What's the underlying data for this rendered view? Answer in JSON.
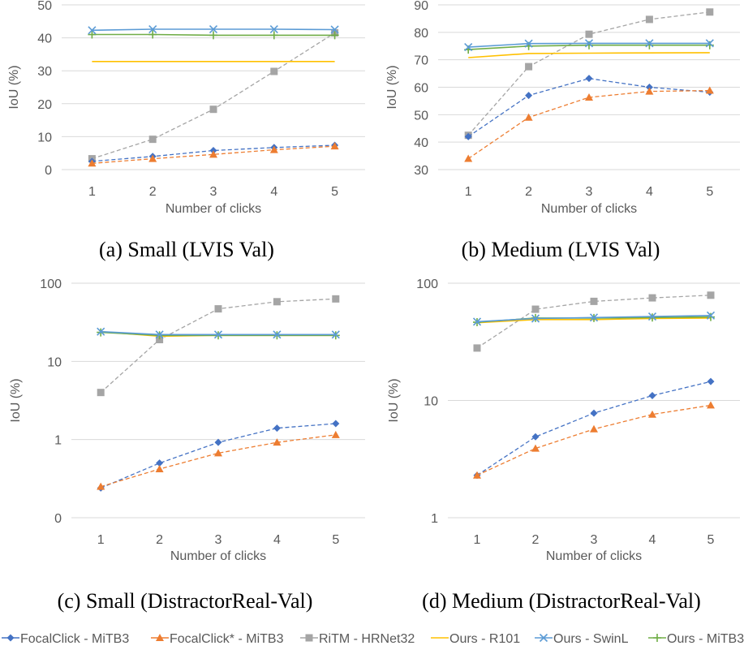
{
  "colors": {
    "focalclick": "#4472c4",
    "focalclick_star": "#ed7d31",
    "ritm": "#a5a5a5",
    "ours_r101": "#ffc000",
    "ours_swinl": "#5b9bd5",
    "ours_mitb3": "#70ad47",
    "gridline": "#d9d9d9",
    "axis_text": "#595959"
  },
  "legend": [
    {
      "key": "focalclick",
      "label": "FocalClick - MiTB3",
      "marker": "diamond",
      "dashed": true
    },
    {
      "key": "focalclick_star",
      "label": "FocalClick* - MiTB3",
      "marker": "triangle",
      "dashed": true
    },
    {
      "key": "ritm",
      "label": "RiTM - HRNet32",
      "marker": "square",
      "dashed": true
    },
    {
      "key": "ours_r101",
      "label": "Ours - R101",
      "marker": "none",
      "dashed": false
    },
    {
      "key": "ours_swinl",
      "label": "Ours - SwinL",
      "marker": "x",
      "dashed": false
    },
    {
      "key": "ours_mitb3",
      "label": "Ours - MiTB3",
      "marker": "plus",
      "dashed": false
    }
  ],
  "chart_data": [
    {
      "type": "line",
      "caption": "(a) Small (LVIS Val)",
      "xlabel": "Number of clicks",
      "ylabel": "IoU (%)",
      "categories": [
        "1",
        "2",
        "3",
        "4",
        "5"
      ],
      "yscale": "linear",
      "ylim": [
        0,
        50
      ],
      "yticks": [
        0,
        10,
        20,
        30,
        40,
        50
      ],
      "ytick_labels": [
        "0",
        "10",
        "20",
        "30",
        "40",
        "50"
      ],
      "grid": true,
      "series": [
        {
          "key": "focalclick",
          "values": [
            2.5,
            4.0,
            5.8,
            6.7,
            7.4
          ]
        },
        {
          "key": "focalclick_star",
          "values": [
            1.9,
            3.3,
            4.6,
            6.0,
            7.1
          ]
        },
        {
          "key": "ritm",
          "values": [
            3.3,
            9.2,
            18.3,
            29.8,
            41.5
          ]
        },
        {
          "key": "ours_r101",
          "values": [
            32.8,
            32.8,
            32.8,
            32.8,
            32.8
          ]
        },
        {
          "key": "ours_swinl",
          "values": [
            42.3,
            42.6,
            42.6,
            42.6,
            42.5
          ]
        },
        {
          "key": "ours_mitb3",
          "values": [
            41.0,
            41.0,
            40.8,
            40.8,
            40.8
          ]
        }
      ]
    },
    {
      "type": "line",
      "caption": "(b) Medium (LVIS Val)",
      "xlabel": "Number of clicks",
      "ylabel": "IoU (%)",
      "categories": [
        "1",
        "2",
        "3",
        "4",
        "5"
      ],
      "yscale": "linear",
      "ylim": [
        30,
        90
      ],
      "yticks": [
        30,
        40,
        50,
        60,
        70,
        80,
        90
      ],
      "ytick_labels": [
        "30",
        "40",
        "50",
        "60",
        "70",
        "80",
        "90"
      ],
      "grid": true,
      "series": [
        {
          "key": "focalclick",
          "values": [
            42.0,
            57.0,
            63.2,
            60.0,
            58.2
          ]
        },
        {
          "key": "focalclick_star",
          "values": [
            34.0,
            49.0,
            56.3,
            58.5,
            58.8
          ]
        },
        {
          "key": "ritm",
          "values": [
            42.5,
            67.5,
            79.3,
            84.7,
            87.4
          ]
        },
        {
          "key": "ours_r101",
          "values": [
            70.8,
            72.3,
            72.4,
            72.5,
            72.6
          ]
        },
        {
          "key": "ours_swinl",
          "values": [
            74.6,
            75.9,
            76.0,
            76.0,
            76.0
          ]
        },
        {
          "key": "ours_mitb3",
          "values": [
            73.7,
            75.0,
            75.3,
            75.3,
            75.3
          ]
        }
      ]
    },
    {
      "type": "line",
      "caption": "(c) Small (DistractorReal-Val)",
      "xlabel": "Number of clicks",
      "ylabel": "IoU (%)",
      "categories": [
        "1",
        "2",
        "3",
        "4",
        "5"
      ],
      "yscale": "log",
      "ylim": [
        0.1,
        100
      ],
      "yticks": [
        0.1,
        1,
        10,
        100
      ],
      "ytick_labels": [
        "0",
        "1",
        "10",
        "100"
      ],
      "grid": true,
      "series": [
        {
          "key": "focalclick",
          "values": [
            0.24,
            0.5,
            0.92,
            1.4,
            1.6
          ]
        },
        {
          "key": "focalclick_star",
          "values": [
            0.25,
            0.42,
            0.67,
            0.92,
            1.15
          ]
        },
        {
          "key": "ritm",
          "values": [
            4.0,
            19.0,
            47.0,
            58.0,
            63.0
          ]
        },
        {
          "key": "ours_r101",
          "values": [
            24.0,
            21.0,
            21.5,
            21.5,
            21.5
          ]
        },
        {
          "key": "ours_swinl",
          "values": [
            24.0,
            22.0,
            22.0,
            22.0,
            22.0
          ]
        },
        {
          "key": "ours_mitb3",
          "values": [
            23.5,
            21.5,
            21.5,
            21.5,
            21.5
          ]
        }
      ]
    },
    {
      "type": "line",
      "caption": "(d) Medium (DistractorReal-Val)",
      "xlabel": "Number of clicks",
      "ylabel": "IoU (%)",
      "categories": [
        "1",
        "2",
        "3",
        "4",
        "5"
      ],
      "yscale": "log",
      "ylim": [
        1,
        100
      ],
      "yticks": [
        1,
        10,
        100
      ],
      "ytick_labels": [
        "1",
        "10",
        "100"
      ],
      "grid": true,
      "series": [
        {
          "key": "focalclick",
          "values": [
            2.3,
            4.9,
            7.8,
            11.0,
            14.5
          ]
        },
        {
          "key": "focalclick_star",
          "values": [
            2.3,
            3.9,
            5.7,
            7.6,
            9.1
          ]
        },
        {
          "key": "ritm",
          "values": [
            28.0,
            60.0,
            70.0,
            75.0,
            79.0
          ]
        },
        {
          "key": "ours_r101",
          "values": [
            46.0,
            49.0,
            49.0,
            50.0,
            50.5
          ]
        },
        {
          "key": "ours_swinl",
          "values": [
            47.0,
            50.0,
            51.0,
            52.0,
            53.0
          ]
        },
        {
          "key": "ours_mitb3",
          "values": [
            46.5,
            50.5,
            50.5,
            51.0,
            51.5
          ]
        }
      ]
    }
  ]
}
